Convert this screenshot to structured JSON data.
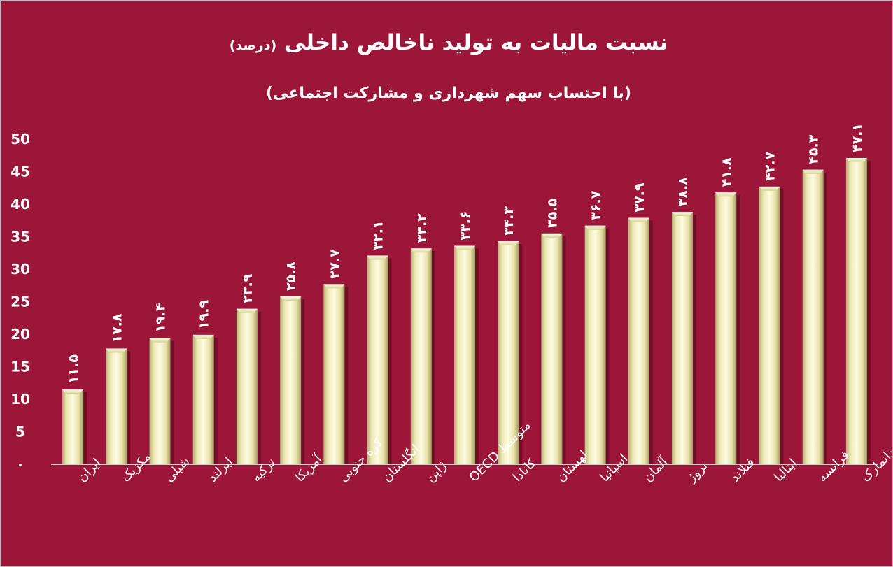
{
  "chart_data": {
    "type": "bar",
    "title": "نسبت مالیات به تولید ناخالص داخلی",
    "title_unit": "(درصد)",
    "subtitle": "(با احتساب سهم شهرداری و مشارکت اجتماعی)",
    "ylim": [
      0,
      50
    ],
    "yticks": [
      "۰",
      "5",
      "10",
      "15",
      "20",
      "25",
      "30",
      "35",
      "40",
      "45",
      "50"
    ],
    "categories": [
      "ایران",
      "مکزیک",
      "شیلی",
      "ایرلند",
      "ترکیه",
      "آمریکا",
      "کره جنوبی",
      "انگلستان",
      "ژاپن",
      "متوسط OECD",
      "کانادا",
      "لهستان",
      "اسپانیا",
      "آلمان",
      "نروژ",
      "فنلاند",
      "ایتالیا",
      "فرانسه",
      "دانمارک"
    ],
    "values": [
      11.5,
      17.8,
      19.4,
      19.9,
      23.9,
      25.8,
      27.7,
      32.1,
      33.2,
      33.6,
      34.3,
      35.5,
      36.7,
      37.9,
      38.8,
      41.8,
      42.7,
      45.3,
      47.1
    ],
    "value_labels": [
      "۱۱.۵",
      "۱۷.۸",
      "۱۹.۴",
      "۱۹.۹",
      "۲۳.۹",
      "۲۵.۸",
      "۲۷.۷",
      "۳۲.۱",
      "۳۳.۲",
      "۳۳.۶",
      "۳۴.۳",
      "۳۵.۵",
      "۳۶.۷",
      "۳۷.۹",
      "۳۸.۸",
      "۴۱.۸",
      "۴۲.۷",
      "۴۵.۳",
      "۴۷.۱"
    ],
    "grid": false,
    "legend": "none"
  },
  "colors": {
    "background": "#9b1638",
    "bar_light": "#fbf8d8",
    "bar_mid": "#e7e1a6",
    "bar_dark": "#a9a36a",
    "text": "#ffffff",
    "axis": "#d9c7cc"
  }
}
